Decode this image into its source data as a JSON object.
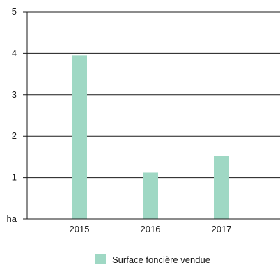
{
  "chart_data": {
    "type": "bar",
    "categories": [
      "2015",
      "2016",
      "2017"
    ],
    "series": [
      {
        "name": "Surface foncière vendue",
        "values": [
          3.95,
          1.12,
          1.52
        ],
        "color": "#9fd8c4"
      }
    ],
    "ylim": [
      0,
      5
    ],
    "yticks": [
      0,
      1,
      2,
      3,
      4,
      5
    ],
    "ytick_labels": [
      "ha",
      "1",
      "2",
      "3",
      "4",
      "5"
    ],
    "xlabel": "",
    "ylabel": "",
    "grid": true,
    "legend_position": "bottom-center"
  }
}
